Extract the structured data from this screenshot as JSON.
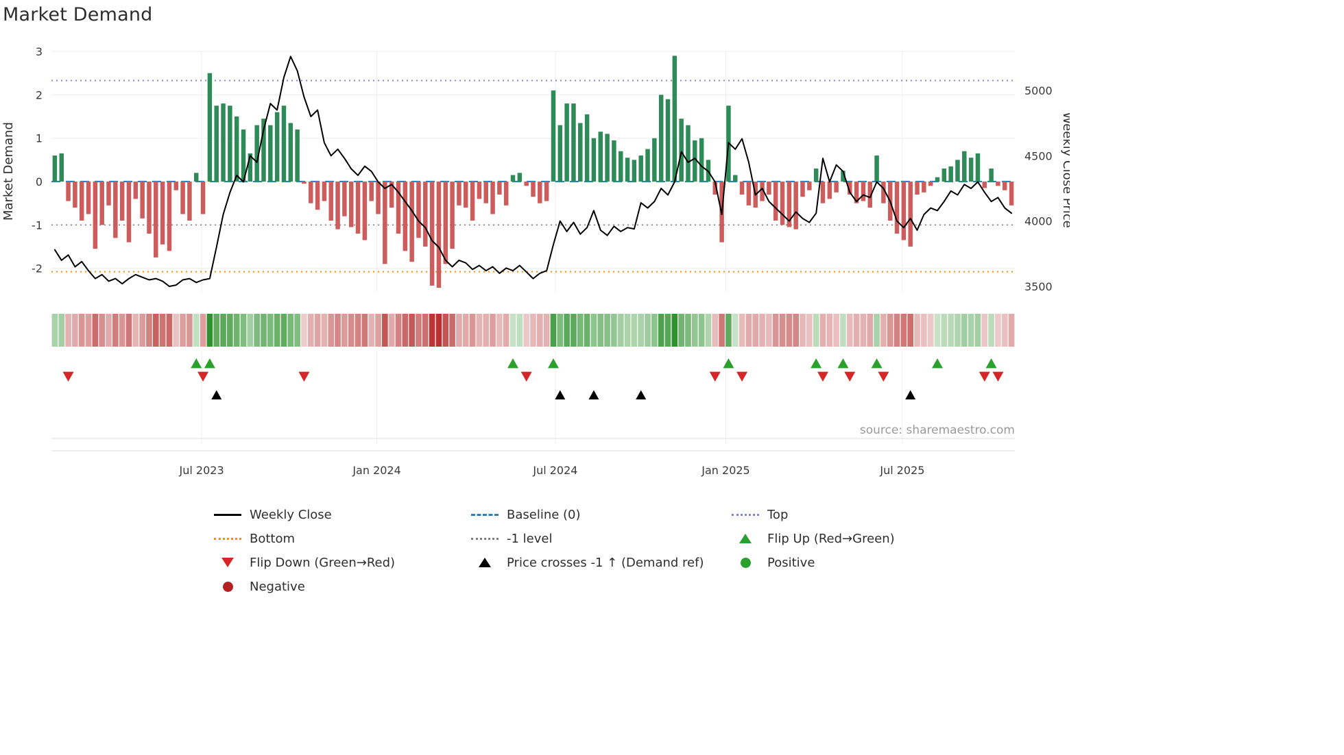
{
  "chart_data": {
    "type": "bar+line combo with heatmap strip and signal markers",
    "title": "Market Demand",
    "source": "source: sharemaestro.com",
    "left_axis": {
      "label": "Market Demand",
      "ticks": [
        3,
        2,
        1,
        0,
        -1,
        -2
      ],
      "min": -2.55,
      "max": 3.0
    },
    "right_axis": {
      "label": "Weekly Close Price",
      "ticks": [
        5000,
        4500,
        4000,
        3500
      ],
      "min": 3460,
      "max": 5300
    },
    "x_axis": {
      "ticks": [
        {
          "label": "Jul 2023",
          "week": 21.8
        },
        {
          "label": "Jan 2024",
          "week": 47.8
        },
        {
          "label": "Jul 2024",
          "week": 74.3
        },
        {
          "label": "Jan 2025",
          "week": 99.6
        },
        {
          "label": "Jul 2025",
          "week": 125.8
        }
      ]
    },
    "reference_lines": [
      {
        "name": "baseline",
        "label": "Baseline (0)",
        "value": 0,
        "style": "dashed",
        "color": "#2d7fb8",
        "width": 2.2,
        "dash": "13 8"
      },
      {
        "name": "top",
        "label": "Top",
        "value": 2.33,
        "style": "dotted",
        "color": "#8585d6",
        "width": 2,
        "dash": "2 5"
      },
      {
        "name": "minus-one",
        "label": "-1 level",
        "value": -1,
        "style": "dotted",
        "color": "#808080",
        "width": 1.6,
        "dash": "2 5"
      },
      {
        "name": "bottom",
        "label": "Bottom",
        "value": -2.08,
        "style": "dotted",
        "color": "#ff8c00",
        "width": 2,
        "dash": "2 5"
      }
    ],
    "colors": {
      "bar_positive": "#2e8b57",
      "bar_negative": "#cd5c5c",
      "price_line": "#000000",
      "flip_up": "#2ca02c",
      "flip_down": "#d62728",
      "price_cross": "#000000",
      "heatmap_positive": "#228b22",
      "heatmap_negative": "#b22222",
      "grid": "#ededed",
      "panel_line": "#dddddd"
    },
    "series": {
      "demand": [
        0.6,
        0.65,
        -0.45,
        -0.6,
        -0.9,
        -0.75,
        -1.55,
        -1.0,
        -0.55,
        -1.3,
        -0.9,
        -1.4,
        -0.4,
        -0.85,
        -1.2,
        -1.75,
        -1.45,
        -1.6,
        -0.2,
        -0.75,
        -0.9,
        0.2,
        -0.75,
        2.5,
        1.75,
        1.8,
        1.75,
        1.5,
        1.2,
        0.65,
        1.3,
        1.45,
        1.3,
        1.6,
        1.75,
        1.35,
        1.2,
        -0.05,
        -0.5,
        -0.65,
        -0.45,
        -0.9,
        -1.1,
        -0.8,
        -1.05,
        -1.2,
        -1.35,
        -0.45,
        -0.75,
        -1.9,
        -0.6,
        -1.2,
        -1.6,
        -1.85,
        -1.3,
        -1.5,
        -2.4,
        -2.45,
        -1.9,
        -1.55,
        -0.55,
        -0.6,
        -0.9,
        -0.4,
        -0.5,
        -0.75,
        -0.3,
        -0.55,
        0.15,
        0.2,
        -0.1,
        -0.35,
        -0.5,
        -0.45,
        2.1,
        1.3,
        1.8,
        1.8,
        1.35,
        1.55,
        1.0,
        1.15,
        1.1,
        0.95,
        0.7,
        0.55,
        0.5,
        0.6,
        0.75,
        1.0,
        2.0,
        1.9,
        2.9,
        1.45,
        1.3,
        0.95,
        1.0,
        0.5,
        -0.3,
        -1.4,
        1.75,
        0.15,
        -0.3,
        -0.55,
        -0.6,
        -0.45,
        -0.3,
        -0.9,
        -1.0,
        -1.05,
        -1.1,
        -0.35,
        -0.2,
        0.3,
        -0.5,
        -0.4,
        -0.25,
        0.25,
        -0.3,
        -0.5,
        -0.45,
        -0.6,
        0.6,
        -0.5,
        -0.9,
        -1.2,
        -1.35,
        -1.5,
        -0.3,
        -0.25,
        -0.1,
        0.1,
        0.3,
        0.35,
        0.5,
        0.7,
        0.55,
        0.65,
        -0.15,
        0.3,
        -0.1,
        -0.2,
        -0.55
      ],
      "weekly_close": [
        3780,
        3700,
        3740,
        3650,
        3690,
        3620,
        3560,
        3590,
        3540,
        3560,
        3520,
        3560,
        3590,
        3570,
        3550,
        3560,
        3540,
        3500,
        3510,
        3550,
        3560,
        3530,
        3550,
        3560,
        3800,
        4050,
        4220,
        4350,
        4300,
        4500,
        4450,
        4700,
        4900,
        4850,
        5100,
        5260,
        5150,
        4950,
        4800,
        4850,
        4600,
        4500,
        4550,
        4480,
        4400,
        4350,
        4420,
        4380,
        4300,
        4250,
        4280,
        4220,
        4150,
        4080,
        4000,
        3950,
        3850,
        3800,
        3700,
        3650,
        3700,
        3680,
        3630,
        3660,
        3620,
        3650,
        3600,
        3640,
        3620,
        3660,
        3610,
        3560,
        3600,
        3620,
        3820,
        4000,
        3920,
        3990,
        3900,
        3950,
        4080,
        3930,
        3890,
        3960,
        3920,
        3950,
        3940,
        4140,
        4100,
        4150,
        4250,
        4200,
        4300,
        4530,
        4450,
        4480,
        4420,
        4380,
        4300,
        4050,
        4600,
        4550,
        4630,
        4450,
        4200,
        4250,
        4150,
        4100,
        4050,
        4000,
        4070,
        4020,
        3990,
        4060,
        4480,
        4300,
        4430,
        4380,
        4220,
        4150,
        4200,
        4180,
        4300,
        4250,
        4150,
        4000,
        3950,
        4020,
        3930,
        4050,
        4100,
        4080,
        4150,
        4230,
        4200,
        4280,
        4250,
        4300,
        4220,
        4150,
        4180,
        4100,
        4060
      ]
    },
    "markers": {
      "flip_up": {
        "label": "Flip Up (Red→Green)",
        "weeks": [
          21,
          23,
          68,
          74,
          100,
          113,
          117,
          122,
          131,
          139
        ]
      },
      "flip_down": {
        "label": "Flip Down (Green→Red)",
        "weeks": [
          2,
          22,
          37,
          70,
          98,
          102,
          114,
          118,
          123,
          138,
          140
        ]
      },
      "price_cross": {
        "label": "Price crosses -1 ↑ (Demand ref)",
        "weeks": [
          24,
          75,
          80,
          87,
          127
        ]
      }
    },
    "legend": [
      {
        "name": "legend-weekly-close",
        "marker": "line",
        "dash": "solid",
        "color": "#000000",
        "label": "Weekly Close"
      },
      {
        "name": "legend-baseline",
        "marker": "line",
        "dash": "dashed",
        "color": "#2d7fb8",
        "label": "Baseline (0)"
      },
      {
        "name": "legend-top",
        "marker": "line",
        "dash": "dotted",
        "color": "#8585d6",
        "label": "Top"
      },
      {
        "name": "legend-bottom",
        "marker": "line",
        "dash": "dotted",
        "color": "#ff8c00",
        "label": "Bottom"
      },
      {
        "name": "legend-minus-one-level",
        "marker": "line",
        "dash": "dotted",
        "color": "#7f7f7f",
        "label": "-1 level"
      },
      {
        "name": "legend-flip-up",
        "marker": "triangle-up",
        "color": "#2ca02c",
        "label": "Flip Up (Red→Green)"
      },
      {
        "name": "legend-flip-down",
        "marker": "triangle-down",
        "color": "#d62728",
        "label": "Flip Down (Green→Red)"
      },
      {
        "name": "legend-price-crosses",
        "marker": "triangle-up",
        "color": "#000000",
        "label": "Price crosses -1 ↑ (Demand ref)"
      },
      {
        "name": "legend-positive",
        "marker": "circle",
        "color": "#2ca02c",
        "label": "Positive"
      },
      {
        "name": "legend-negative",
        "marker": "circle",
        "color": "#b22222",
        "label": "Negative"
      }
    ]
  }
}
